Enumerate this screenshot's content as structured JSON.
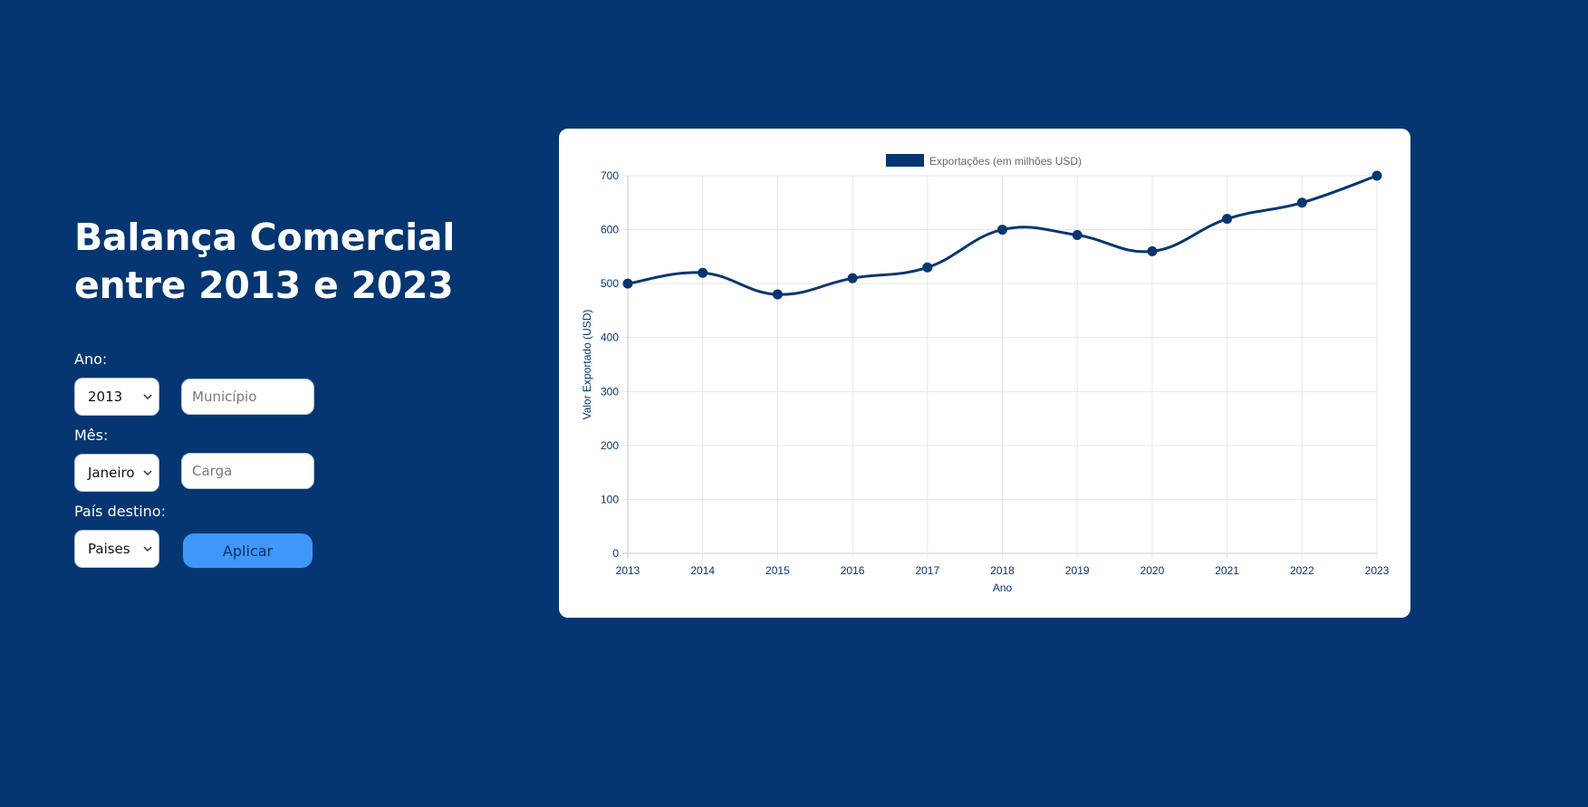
{
  "header": {
    "title_line1": "Balança Comercial",
    "title_line2": "entre 2013 e 2023"
  },
  "filters": {
    "ano_label": "Ano:",
    "ano_value": "2013",
    "municipio_placeholder": "Município",
    "mes_label": "Mês:",
    "mes_value": "Janeiro",
    "carga_placeholder": "Carga",
    "pais_label": "País destino:",
    "pais_value": "Paises",
    "apply_label": "Aplicar"
  },
  "colors": {
    "background": "#053672",
    "series": "#053672",
    "button": "#3f97fa"
  },
  "chart_data": {
    "type": "line",
    "x": [
      "2013",
      "2014",
      "2015",
      "2016",
      "2017",
      "2018",
      "2019",
      "2020",
      "2021",
      "2022",
      "2023"
    ],
    "series": [
      {
        "name": "Exportações (em milhões USD)",
        "values": [
          500,
          520,
          480,
          510,
          530,
          600,
          590,
          560,
          620,
          650,
          700
        ]
      }
    ],
    "xlabel": "Ano",
    "ylabel": "Valor Exportado (USD)",
    "ylim": [
      0,
      700
    ],
    "yticks": [
      "0",
      "100",
      "200",
      "300",
      "400",
      "500",
      "600",
      "700"
    ],
    "legend_position": "top",
    "grid": true
  }
}
